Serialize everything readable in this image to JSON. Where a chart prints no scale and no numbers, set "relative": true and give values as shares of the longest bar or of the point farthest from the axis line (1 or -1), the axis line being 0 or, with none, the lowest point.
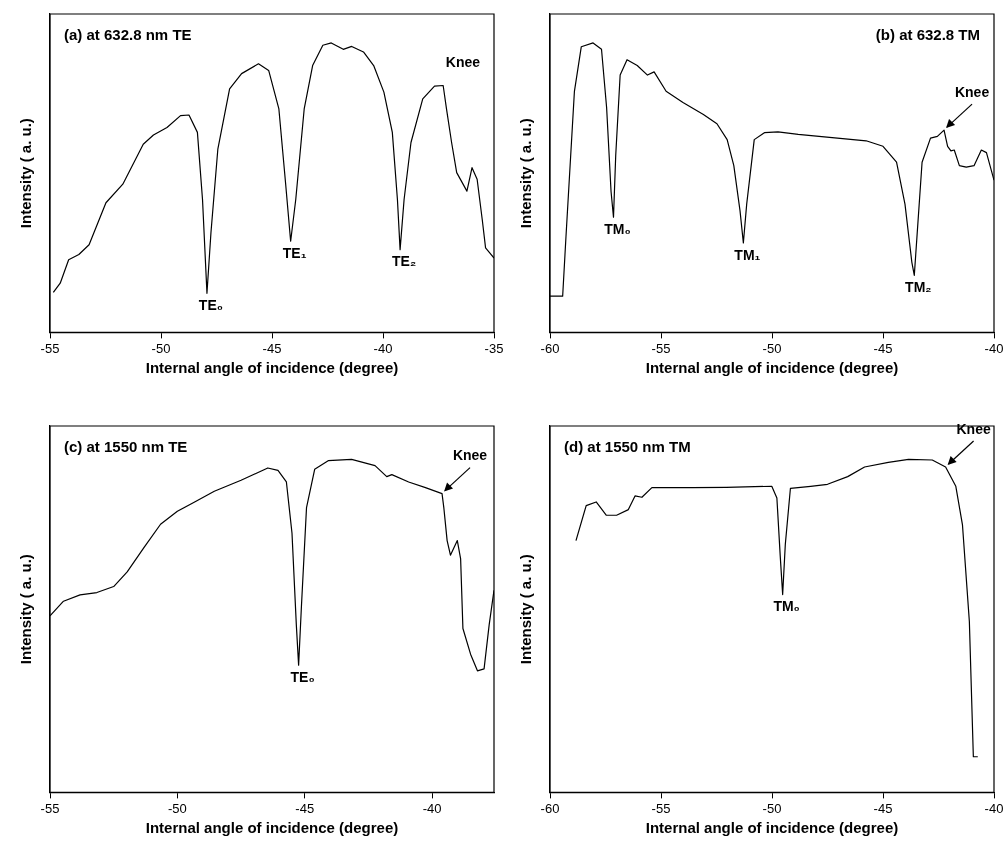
{
  "chart_data": [
    {
      "type": "line",
      "title": "(a) at 632.8 nm TE",
      "xlabel": "Internal angle of incidence (degree)",
      "ylabel": "Intensity ( a. u.)",
      "relative": true,
      "xlim": [
        -55,
        -35
      ],
      "xticks": [
        -55,
        -50,
        -45,
        -40,
        -35
      ],
      "grid": false,
      "legend": false,
      "marker": "none",
      "line_style": "solid",
      "series": [
        {
          "color": "#000000",
          "x": [
            -54.85,
            -54.54,
            -54.16,
            -53.7,
            -53.24,
            -52.48,
            -51.72,
            -50.8,
            -50.34,
            -49.73,
            -49.12,
            -48.74,
            -48.36,
            -48.13,
            -47.93,
            -47.75,
            -47.44,
            -46.91,
            -46.37,
            -45.61,
            -45.15,
            -44.69,
            -44.39,
            -44.16,
            -43.93,
            -43.55,
            -43.17,
            -42.71,
            -42.33,
            -41.79,
            -41.41,
            -40.88,
            -40.42,
            -39.96,
            -39.58,
            -39.35,
            -39.23,
            -39.05,
            -38.74,
            -38.21,
            -37.68,
            -37.29,
            -37.14,
            -36.91,
            -36.68,
            -36.22,
            -35.99,
            -35.76,
            -35.53,
            -35.38,
            -35.0
          ],
          "values": [
            0.138,
            0.17,
            0.251,
            0.269,
            0.303,
            0.448,
            0.512,
            0.65,
            0.682,
            0.708,
            0.749,
            0.751,
            0.691,
            0.459,
            0.135,
            0.344,
            0.633,
            0.841,
            0.894,
            0.928,
            0.905,
            0.772,
            0.517,
            0.315,
            0.459,
            0.772,
            0.922,
            0.992,
            1.0,
            0.978,
            0.988,
            0.969,
            0.922,
            0.83,
            0.691,
            0.459,
            0.286,
            0.459,
            0.656,
            0.807,
            0.851,
            0.853,
            0.772,
            0.656,
            0.552,
            0.488,
            0.569,
            0.529,
            0.39,
            0.292,
            0.257
          ]
        }
      ],
      "annotations": [
        {
          "text": "TE₀",
          "x": -47.93,
          "y": 0.135
        },
        {
          "text": "TE₁",
          "x": -44.16,
          "y": 0.315
        },
        {
          "text": "TE₂",
          "x": -39.23,
          "y": 0.286
        },
        "Knee"
      ]
    },
    {
      "type": "line",
      "title": "(b) at 632.8 TM",
      "xlabel": "Internal angle of incidence (degree)",
      "ylabel": "Intensity ( a. u.)",
      "relative": true,
      "xlim": [
        -60,
        -40
      ],
      "xticks": [
        -60,
        -55,
        -50,
        -45,
        -40
      ],
      "grid": false,
      "legend": false,
      "marker": "none",
      "line_style": "solid",
      "series": [
        {
          "color": "#000000",
          "x": [
            -60,
            -59.43,
            -59.28,
            -58.9,
            -58.59,
            -58.06,
            -57.68,
            -57.45,
            -57.25,
            -57.14,
            -57.04,
            -56.84,
            -56.53,
            -56.07,
            -55.61,
            -55.31,
            -54.77,
            -54.01,
            -53.09,
            -52.48,
            -52.02,
            -51.72,
            -51.44,
            -51.29,
            -51.14,
            -50.8,
            -50.34,
            -49.73,
            -48.82,
            -47.29,
            -45.76,
            -45.0,
            -44.39,
            -44.01,
            -43.7,
            -43.59,
            -43.47,
            -43.24,
            -42.86,
            -42.55,
            -42.25,
            -42.09,
            -41.94,
            -41.79,
            -41.56,
            -41.25,
            -40.9,
            -40.57,
            -40.34,
            -40.0
          ],
          "values": [
            0.125,
            0.125,
            0.331,
            0.833,
            0.987,
            1.0,
            0.978,
            0.777,
            0.487,
            0.398,
            0.61,
            0.889,
            0.942,
            0.922,
            0.889,
            0.9,
            0.833,
            0.794,
            0.753,
            0.721,
            0.666,
            0.576,
            0.42,
            0.309,
            0.443,
            0.666,
            0.69,
            0.693,
            0.684,
            0.673,
            0.662,
            0.643,
            0.588,
            0.443,
            0.242,
            0.197,
            0.331,
            0.588,
            0.671,
            0.677,
            0.699,
            0.643,
            0.627,
            0.63,
            0.576,
            0.571,
            0.576,
            0.63,
            0.621,
            0.526
          ]
        }
      ],
      "annotations": [
        {
          "text": "TM₀",
          "x": -57.14,
          "y": 0.398
        },
        {
          "text": "TM₁",
          "x": -51.29,
          "y": 0.309
        },
        {
          "text": "TM₂",
          "x": -43.59,
          "y": 0.197
        },
        {
          "text": "Knee",
          "x": -42.25,
          "y": 0.699
        }
      ]
    },
    {
      "type": "line",
      "title": "(c) at 1550 nm TE",
      "xlabel": "Internal angle of incidence (degree)",
      "ylabel": "Intensity ( a. u.)",
      "relative": true,
      "xlim": [
        -55,
        -37.57
      ],
      "xticks": [
        -55,
        -50,
        -45,
        -40
      ],
      "grid": false,
      "legend": false,
      "marker": "none",
      "line_style": "solid",
      "series": [
        {
          "color": "#000000",
          "x": [
            -55,
            -54.47,
            -53.82,
            -53.16,
            -52.5,
            -51.97,
            -51.32,
            -50.66,
            -50.0,
            -49.34,
            -48.55,
            -47.5,
            -46.45,
            -46.05,
            -45.72,
            -45.5,
            -45.33,
            -45.24,
            -45.13,
            -44.93,
            -44.61,
            -44.08,
            -43.16,
            -42.24,
            -41.78,
            -41.58,
            -40.92,
            -40.26,
            -39.61,
            -39.54,
            -39.41,
            -39.28,
            -39.01,
            -38.88,
            -38.79,
            -38.49,
            -38.22,
            -37.96,
            -37.76,
            -37.57
          ],
          "values": [
            0.53,
            0.574,
            0.593,
            0.6,
            0.618,
            0.662,
            0.734,
            0.805,
            0.844,
            0.871,
            0.904,
            0.937,
            0.974,
            0.967,
            0.932,
            0.778,
            0.503,
            0.382,
            0.558,
            0.855,
            0.97,
            0.996,
            1.0,
            0.981,
            0.948,
            0.954,
            0.932,
            0.915,
            0.897,
            0.855,
            0.756,
            0.712,
            0.756,
            0.701,
            0.492,
            0.415,
            0.365,
            0.371,
            0.503,
            0.607
          ]
        }
      ],
      "annotations": [
        {
          "text": "TE₀",
          "x": -45.24,
          "y": 0.382
        },
        {
          "text": "Knee",
          "x": -39.61,
          "y": 0.897
        }
      ]
    },
    {
      "type": "line",
      "title": "(d) at 1550 nm TM",
      "xlabel": "Internal angle of incidence (degree)",
      "ylabel": "Intensity ( a. u.)",
      "relative": true,
      "xlim": [
        -60,
        -40
      ],
      "xticks": [
        -60,
        -55,
        -50,
        -45,
        -40
      ],
      "grid": false,
      "legend": false,
      "marker": "none",
      "line_style": "solid",
      "series": [
        {
          "color": "#000000",
          "x": [
            -58.83,
            -58.37,
            -57.92,
            -57.46,
            -57.0,
            -56.47,
            -56.17,
            -55.86,
            -55.41,
            -53.58,
            -52.06,
            -50.01,
            -49.78,
            -49.63,
            -49.52,
            -49.4,
            -49.17,
            -48.26,
            -47.5,
            -46.59,
            -45.83,
            -44.76,
            -43.85,
            -42.78,
            -42.18,
            -41.72,
            -41.42,
            -41.11,
            -40.93,
            -40.73
          ],
          "values": [
            0.756,
            0.861,
            0.872,
            0.832,
            0.832,
            0.849,
            0.89,
            0.886,
            0.915,
            0.915,
            0.916,
            0.919,
            0.884,
            0.71,
            0.594,
            0.745,
            0.913,
            0.919,
            0.925,
            0.948,
            0.977,
            0.991,
            1.0,
            0.998,
            0.977,
            0.919,
            0.803,
            0.513,
            0.107,
            0.107
          ]
        }
      ],
      "annotations": [
        {
          "text": "TM₀",
          "x": -49.52,
          "y": 0.594
        },
        {
          "text": "Knee",
          "x": -42.18,
          "y": 0.977
        }
      ]
    }
  ]
}
